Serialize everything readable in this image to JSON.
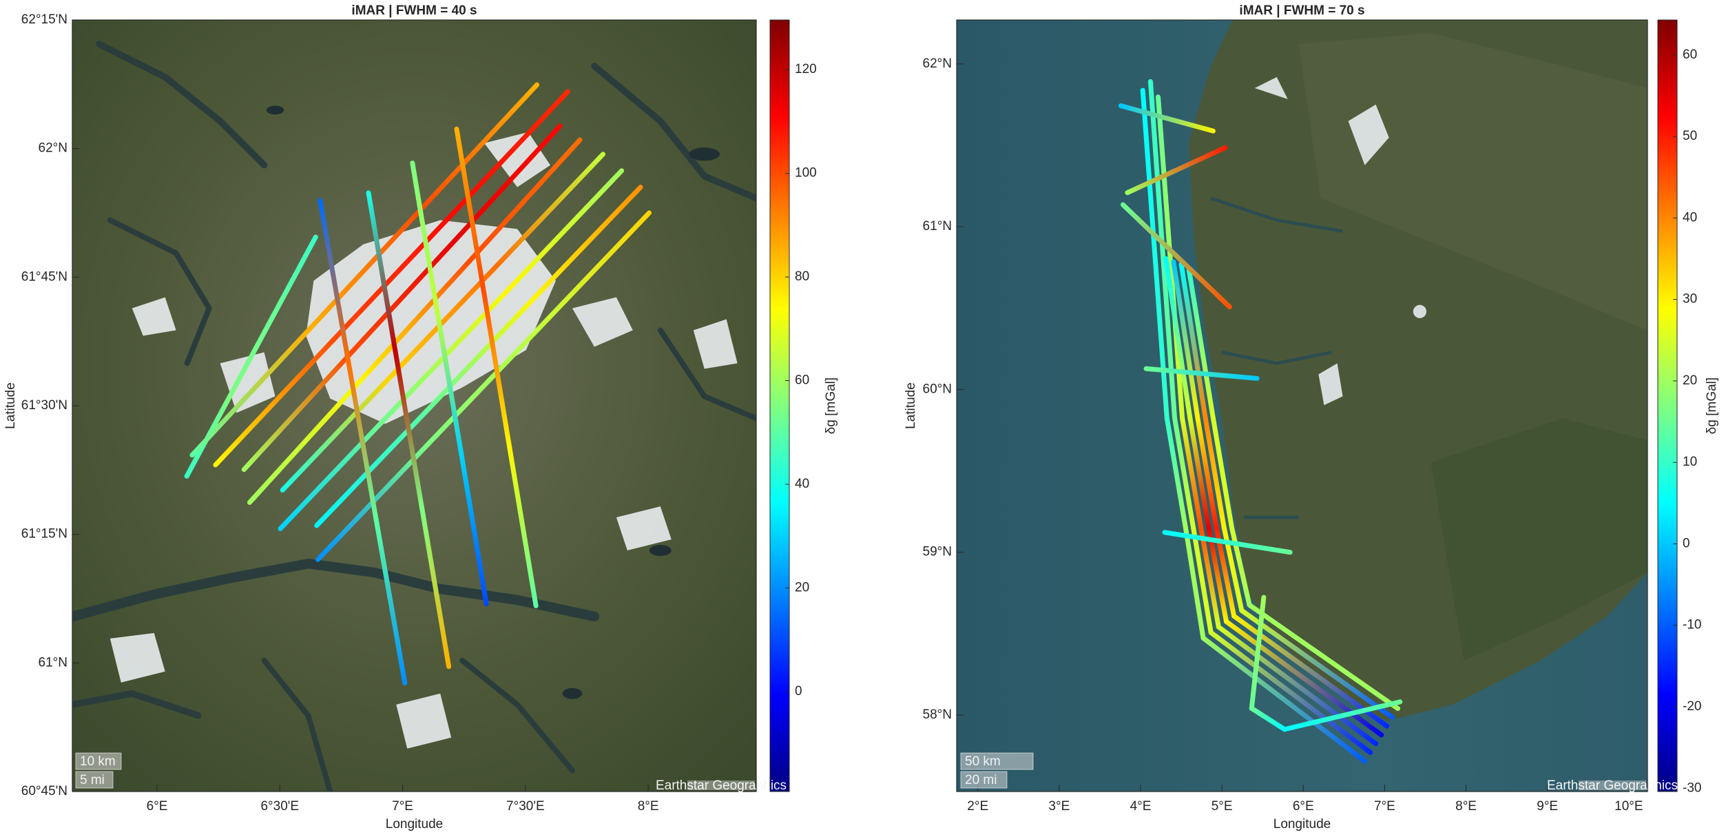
{
  "chart_data": [
    {
      "type": "map",
      "title": "iMAR | FWHM = 40 s",
      "x_label": "Longitude",
      "y_label": "Latitude",
      "xlim": [
        5.655,
        8.44
      ],
      "ylim": [
        60.75,
        62.25
      ],
      "xticks": [
        {
          "value": 6,
          "label": "6°E"
        },
        {
          "value": 6.5,
          "label": "6°30'E"
        },
        {
          "value": 7,
          "label": "7°E"
        },
        {
          "value": 7.5,
          "label": "7°30'E"
        },
        {
          "value": 8,
          "label": "8°E"
        }
      ],
      "yticks": [
        {
          "value": 60.75,
          "label": "60°45'N"
        },
        {
          "value": 61,
          "label": "61°N"
        },
        {
          "value": 61.25,
          "label": "61°15'N"
        },
        {
          "value": 61.5,
          "label": "61°30'N"
        },
        {
          "value": 61.75,
          "label": "61°45'N"
        },
        {
          "value": 62,
          "label": "62°N"
        },
        {
          "value": 62.25,
          "label": "62°15'N"
        }
      ],
      "colormap": "jet",
      "clim": [
        -19.3,
        129.6
      ],
      "cticks": [
        0,
        20,
        40,
        60,
        80,
        100,
        120
      ],
      "colorbar_label": "δg [mGal]",
      "scale_bar": [
        "10 km",
        "5 mi"
      ],
      "attribution": "Earthstar Geographics",
      "tracks": [
        {
          "lon": [
            6.121,
            6.296,
            6.471,
            6.646
          ],
          "lat": [
            61.363,
            61.518,
            61.673,
            61.828
          ],
          "values": [
            45,
            55,
            52,
            45
          ]
        },
        {
          "lon": [
            6.143,
            6.611,
            7.079,
            7.547
          ],
          "lat": [
            61.404,
            61.644,
            61.884,
            62.124
          ],
          "values": [
            50,
            85,
            100,
            85
          ]
        },
        {
          "lon": [
            6.238,
            6.716,
            7.195,
            7.673
          ],
          "lat": [
            61.385,
            61.627,
            61.869,
            62.111
          ],
          "values": [
            75,
            100,
            110,
            105
          ]
        },
        {
          "lon": [
            6.354,
            6.783,
            7.212,
            7.641
          ],
          "lat": [
            61.376,
            61.599,
            61.821,
            62.044
          ],
          "values": [
            60,
            100,
            115,
            110
          ]
        },
        {
          "lon": [
            6.377,
            6.825,
            7.274,
            7.722
          ],
          "lat": [
            61.312,
            61.547,
            61.782,
            62.017
          ],
          "values": [
            60,
            75,
            100,
            95
          ]
        },
        {
          "lon": [
            6.511,
            6.946,
            7.381,
            7.816
          ],
          "lat": [
            61.336,
            61.554,
            61.771,
            61.989
          ],
          "values": [
            40,
            80,
            95,
            65
          ]
        },
        {
          "lon": [
            6.502,
            6.965,
            7.429,
            7.892
          ],
          "lat": [
            61.261,
            61.493,
            61.725,
            61.957
          ],
          "values": [
            30,
            55,
            75,
            60
          ]
        },
        {
          "lon": [
            6.65,
            7.09,
            7.529,
            7.969
          ],
          "lat": [
            61.267,
            61.486,
            61.706,
            61.925
          ],
          "values": [
            35,
            50,
            75,
            90
          ]
        },
        {
          "lon": [
            6.655,
            7.105,
            7.554,
            8.004
          ],
          "lat": [
            61.201,
            61.426,
            61.65,
            61.875
          ],
          "values": [
            20,
            55,
            65,
            80
          ]
        },
        {
          "lon": [
            6.664,
            6.779,
            6.894,
            7.009
          ],
          "lat": [
            61.899,
            61.586,
            61.274,
            60.961
          ],
          "values": [
            15,
            95,
            50,
            20
          ]
        },
        {
          "lon": [
            6.861,
            6.97,
            7.079,
            7.188
          ],
          "lat": [
            61.914,
            61.607,
            61.3,
            60.993
          ],
          "values": [
            40,
            120,
            55,
            85
          ]
        },
        {
          "lon": [
            7.04,
            7.14,
            7.241,
            7.341
          ],
          "lat": [
            61.972,
            61.686,
            61.401,
            61.115
          ],
          "values": [
            55,
            65,
            30,
            10
          ]
        },
        {
          "lon": [
            7.22,
            7.328,
            7.435,
            7.543
          ],
          "lat": [
            62.038,
            61.729,
            61.42,
            61.111
          ],
          "values": [
            85,
            100,
            75,
            50
          ]
        }
      ]
    },
    {
      "type": "map",
      "title": "iMAR | FWHM = 70 s",
      "x_label": "Longitude",
      "y_label": "Latitude",
      "xlim": [
        1.74,
        10.23
      ],
      "ylim": [
        57.53,
        62.27
      ],
      "xticks": [
        {
          "value": 2,
          "label": "2°E"
        },
        {
          "value": 3,
          "label": "3°E"
        },
        {
          "value": 4,
          "label": "4°E"
        },
        {
          "value": 5,
          "label": "5°E"
        },
        {
          "value": 6,
          "label": "6°E"
        },
        {
          "value": 7,
          "label": "7°E"
        },
        {
          "value": 8,
          "label": "8°E"
        },
        {
          "value": 9,
          "label": "9°E"
        },
        {
          "value": 10,
          "label": "10°E"
        }
      ],
      "yticks": [
        {
          "value": 58,
          "label": "58°N"
        },
        {
          "value": 59,
          "label": "59°N"
        },
        {
          "value": 60,
          "label": "60°N"
        },
        {
          "value": 61,
          "label": "61°N"
        },
        {
          "value": 62,
          "label": "62°N"
        }
      ],
      "colormap": "jet",
      "clim": [
        -30.4,
        64.3
      ],
      "cticks": [
        -30,
        -20,
        -10,
        0,
        10,
        20,
        30,
        40,
        50,
        60
      ],
      "colorbar_label": "δg [mGal]",
      "scale_bar": [
        "50 km",
        "20 mi"
      ],
      "attribution": "Earthstar Geographics",
      "tracks": [
        {
          "lon": [
            4.027,
            4.324,
            4.554,
            4.77,
            6.757
          ],
          "lat": [
            61.838,
            59.824,
            59.149,
            58.473,
            57.716
          ],
          "values": [
            5,
            10,
            20,
            20,
            -10
          ]
        },
        {
          "lon": [
            4.122,
            4.419,
            4.649,
            4.865,
            6.824
          ],
          "lat": [
            61.892,
            59.824,
            59.149,
            58.507,
            57.77
          ],
          "values": [
            10,
            15,
            25,
            25,
            -15
          ]
        },
        {
          "lon": [
            4.216,
            4.513,
            4.743,
            4.959,
            6.892
          ],
          "lat": [
            61.797,
            59.824,
            59.149,
            58.541,
            57.824
          ],
          "values": [
            15,
            25,
            45,
            25,
            -15
          ]
        },
        {
          "lon": [
            4.311,
            4.608,
            4.838,
            5.054,
            6.959
          ],
          "lat": [
            60.804,
            59.824,
            59.149,
            58.574,
            57.878
          ],
          "values": [
            5,
            25,
            55,
            30,
            -20
          ]
        },
        {
          "lon": [
            4.405,
            4.702,
            4.932,
            5.148,
            7.027
          ],
          "lat": [
            60.784,
            59.824,
            59.149,
            58.608,
            57.932
          ],
          "values": [
            0,
            30,
            50,
            30,
            -15
          ]
        },
        {
          "lon": [
            4.5,
            4.797,
            5.027,
            5.243,
            7.095
          ],
          "lat": [
            60.77,
            59.824,
            59.149,
            58.642,
            57.986
          ],
          "values": [
            5,
            40,
            30,
            25,
            -10
          ]
        },
        {
          "lon": [
            4.595,
            4.892,
            5.122,
            5.338,
            7.162
          ],
          "lat": [
            60.736,
            59.824,
            59.149,
            58.676,
            58.04
          ],
          "values": [
            10,
            25,
            25,
            20,
            20
          ]
        },
        {
          "lon": [
            3.757,
            4.892
          ],
          "lat": [
            61.743,
            61.588
          ],
          "values": [
            0,
            30
          ]
        },
        {
          "lon": [
            3.838,
            5.041
          ],
          "lat": [
            61.209,
            61.486
          ],
          "values": [
            20,
            50
          ]
        },
        {
          "lon": [
            3.784,
            5.095
          ],
          "lat": [
            61.135,
            60.507
          ],
          "values": [
            15,
            45
          ]
        },
        {
          "lon": [
            4.068,
            5.432
          ],
          "lat": [
            60.128,
            60.068
          ],
          "values": [
            15,
            0
          ]
        },
        {
          "lon": [
            4.297,
            5.838
          ],
          "lat": [
            59.122,
            59.0
          ],
          "values": [
            5,
            15
          ]
        },
        {
          "lon": [
            5.514,
            5.365,
            5.77,
            7.189
          ],
          "lat": [
            58.723,
            58.041,
            57.912,
            58.081
          ],
          "values": [
            20,
            15,
            5,
            15
          ]
        }
      ]
    }
  ]
}
